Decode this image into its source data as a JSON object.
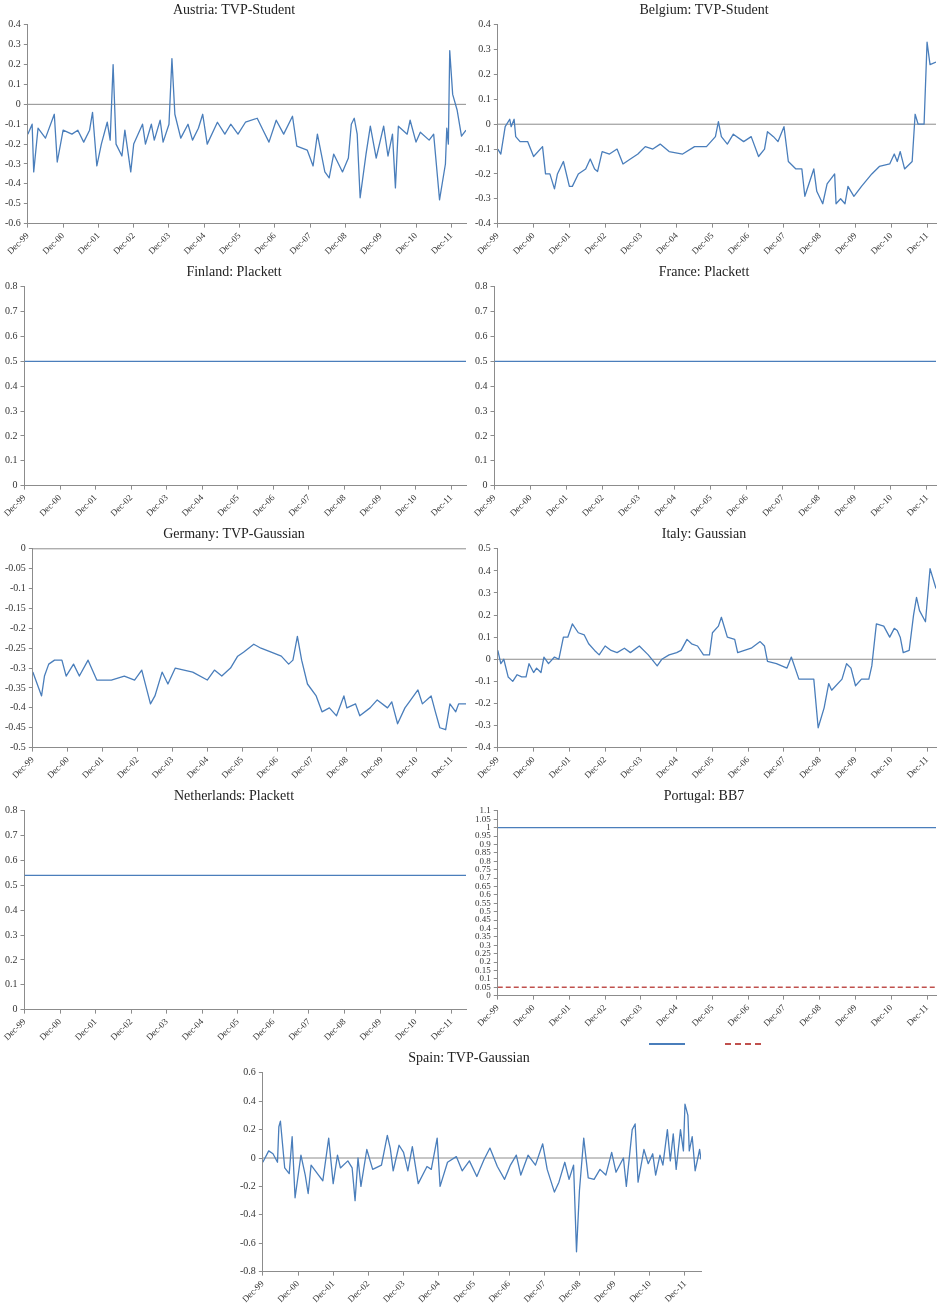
{
  "chart_data": [
    {
      "type": "line",
      "title": "Austria: TVP-Student",
      "xlim": [
        "1999-12",
        "2012-05"
      ],
      "ylim": [
        -0.6,
        0.4
      ],
      "yticks": [
        -0.6,
        -0.5,
        -0.4,
        -0.3,
        -0.2,
        -0.1,
        0,
        0.1,
        0.2,
        0.3,
        0.4
      ],
      "xticks": [
        {
          "value": "1999-12",
          "label": "Dec-99"
        },
        {
          "value": "2000-12",
          "label": "Dec-00"
        },
        {
          "value": "2001-12",
          "label": "Dec-01"
        },
        {
          "value": "2002-12",
          "label": "Dec-02"
        },
        {
          "value": "2003-12",
          "label": "Dec-03"
        },
        {
          "value": "2004-12",
          "label": "Dec-04"
        },
        {
          "value": "2005-12",
          "label": "Dec-05"
        },
        {
          "value": "2006-12",
          "label": "Dec-06"
        },
        {
          "value": "2007-12",
          "label": "Dec-07"
        },
        {
          "value": "2008-12",
          "label": "Dec-08"
        },
        {
          "value": "2009-12",
          "label": "Dec-09"
        },
        {
          "value": "2010-12",
          "label": "Dec-10"
        },
        {
          "value": "2011-12",
          "label": "Dec-11"
        }
      ],
      "ref_lines": [
        {
          "axis": "y",
          "value": 0
        }
      ],
      "series": [
        {
          "color": "#4a7ebb",
          "x": [
            "1999-12",
            "2000-01-15",
            "2000-02",
            "2000-03-15",
            "2000-06",
            "2000-09",
            "2000-10",
            "2000-12",
            "2001-03",
            "2001-05",
            "2001-07",
            "2001-09",
            "2001-10",
            "2001-11-15",
            "2002-01",
            "2002-03",
            "2002-04",
            "2002-05",
            "2002-06",
            "2002-08",
            "2002-09",
            "2002-11",
            "2002-12",
            "2003-03",
            "2003-04",
            "2003-06",
            "2003-07",
            "2003-09",
            "2003-10",
            "2003-12",
            "2004-01",
            "2004-02",
            "2004-04",
            "2004-06-15",
            "2004-08",
            "2004-10",
            "2004-11-15",
            "2005-01",
            "2005-04-15",
            "2005-07",
            "2005-09",
            "2005-11-15",
            "2006-02",
            "2006-06",
            "2006-08",
            "2006-10",
            "2006-12-15",
            "2007-03",
            "2007-06",
            "2007-07-15",
            "2007-11",
            "2008-01",
            "2008-02-15",
            "2008-05",
            "2008-06-15",
            "2008-08",
            "2008-11",
            "2009-01",
            "2009-02",
            "2009-03",
            "2009-04",
            "2009-05",
            "2009-07",
            "2009-08-15",
            "2009-10-15",
            "2010-01",
            "2010-02-15",
            "2010-04",
            "2010-05",
            "2010-06",
            "2010-09",
            "2010-10",
            "2010-12",
            "2011-01-15",
            "2011-04-15",
            "2011-06",
            "2011-08",
            "2011-10",
            "2011-10-15",
            "2011-11",
            "2011-11-15",
            "2011-12-15",
            "2012-02",
            "2012-03-15",
            "2012-05"
          ],
          "values": [
            -0.15,
            -0.1,
            -0.34,
            -0.12,
            -0.17,
            -0.05,
            -0.29,
            -0.13,
            -0.15,
            -0.13,
            -0.19,
            -0.13,
            -0.04,
            -0.31,
            -0.2,
            -0.09,
            -0.18,
            0.2,
            -0.2,
            -0.26,
            -0.13,
            -0.34,
            -0.2,
            -0.1,
            -0.2,
            -0.1,
            -0.18,
            -0.08,
            -0.19,
            -0.1,
            0.23,
            -0.05,
            -0.17,
            -0.1,
            -0.18,
            -0.12,
            -0.05,
            -0.2,
            -0.09,
            -0.15,
            -0.1,
            -0.15,
            -0.09,
            -0.07,
            -0.13,
            -0.19,
            -0.08,
            -0.15,
            -0.06,
            -0.21,
            -0.23,
            -0.31,
            -0.15,
            -0.34,
            -0.37,
            -0.25,
            -0.34,
            -0.27,
            -0.1,
            -0.07,
            -0.15,
            -0.47,
            -0.25,
            -0.11,
            -0.27,
            -0.11,
            -0.26,
            -0.15,
            -0.42,
            -0.11,
            -0.15,
            -0.08,
            -0.19,
            -0.14,
            -0.18,
            -0.15,
            -0.48,
            -0.3,
            -0.12,
            -0.2,
            0.27,
            0.05,
            -0.03,
            -0.16,
            -0.13
          ]
        }
      ]
    },
    {
      "type": "line",
      "title": "Belgium: TVP-Student",
      "xlim": [
        "1999-12",
        "2012-03"
      ],
      "ylim": [
        -0.4,
        0.4
      ],
      "yticks": [
        -0.4,
        -0.3,
        -0.2,
        -0.1,
        0,
        0.1,
        0.2,
        0.3,
        0.4
      ],
      "xticks": [
        {
          "value": "1999-12",
          "label": "Dec-99"
        },
        {
          "value": "2000-12",
          "label": "Dec-00"
        },
        {
          "value": "2001-12",
          "label": "Dec-01"
        },
        {
          "value": "2002-12",
          "label": "Dec-02"
        },
        {
          "value": "2003-12",
          "label": "Dec-03"
        },
        {
          "value": "2004-12",
          "label": "Dec-04"
        },
        {
          "value": "2005-12",
          "label": "Dec-05"
        },
        {
          "value": "2006-12",
          "label": "Dec-06"
        },
        {
          "value": "2007-12",
          "label": "Dec-07"
        },
        {
          "value": "2008-12",
          "label": "Dec-08"
        },
        {
          "value": "2009-12",
          "label": "Dec-09"
        },
        {
          "value": "2010-12",
          "label": "Dec-10"
        },
        {
          "value": "2011-12",
          "label": "Dec-11"
        }
      ],
      "ref_lines": [
        {
          "axis": "y",
          "value": 0
        }
      ],
      "series": [
        {
          "color": "#4a7ebb",
          "x": [
            "1999-12",
            "2000-01",
            "2000-02-15",
            "2000-04",
            "2000-04-15",
            "2000-05-15",
            "2000-06",
            "2000-07-15",
            "2000-10",
            "2000-12",
            "2001-03",
            "2001-04",
            "2001-05-15",
            "2001-07",
            "2001-08",
            "2001-10",
            "2001-12",
            "2002-01",
            "2002-03",
            "2002-05-15",
            "2002-07",
            "2002-08-15",
            "2002-09-15",
            "2002-11",
            "2003-01-15",
            "2003-04",
            "2003-06",
            "2003-08-15",
            "2003-11",
            "2004-01-15",
            "2004-04",
            "2004-06-15",
            "2004-09-15",
            "2005-02",
            "2005-06",
            "2005-10",
            "2006-01",
            "2006-02",
            "2006-03",
            "2006-05",
            "2006-07",
            "2006-10-15",
            "2007-01",
            "2007-03-15",
            "2007-05-15",
            "2007-06-15",
            "2007-08-15",
            "2007-10",
            "2007-12",
            "2008-01-15",
            "2008-04",
            "2008-06",
            "2008-07",
            "2008-10",
            "2008-11",
            "2009-01",
            "2009-02-15",
            "2009-05",
            "2009-05-15",
            "2009-07",
            "2009-08-15",
            "2009-09-15",
            "2009-11-15",
            "2010-02",
            "2010-05-15",
            "2010-08",
            "2010-11-15",
            "2011-01",
            "2011-02",
            "2011-03",
            "2011-04-15",
            "2011-07",
            "2011-08",
            "2011-09",
            "2011-11",
            "2011-12",
            "2012-01",
            "2012-03"
          ],
          "values": [
            -0.1,
            -0.12,
            -0.01,
            0.02,
            -0.01,
            0.02,
            -0.05,
            -0.07,
            -0.07,
            -0.13,
            -0.09,
            -0.2,
            -0.2,
            -0.26,
            -0.2,
            -0.15,
            -0.25,
            -0.25,
            -0.2,
            -0.18,
            -0.14,
            -0.18,
            -0.19,
            -0.11,
            -0.12,
            -0.1,
            -0.16,
            -0.14,
            -0.12,
            -0.09,
            -0.1,
            -0.08,
            -0.11,
            -0.12,
            -0.09,
            -0.09,
            -0.05,
            0.01,
            -0.05,
            -0.08,
            -0.04,
            -0.07,
            -0.05,
            -0.13,
            -0.1,
            -0.03,
            -0.05,
            -0.07,
            -0.01,
            -0.15,
            -0.18,
            -0.18,
            -0.29,
            -0.18,
            -0.27,
            -0.32,
            -0.24,
            -0.2,
            -0.32,
            -0.3,
            -0.32,
            -0.25,
            -0.29,
            -0.25,
            -0.2,
            -0.17,
            -0.16,
            -0.12,
            -0.15,
            -0.11,
            -0.18,
            -0.15,
            0.04,
            0,
            0,
            0.33,
            0.24,
            0.25
          ]
        }
      ]
    },
    {
      "type": "line",
      "title": "Finland: Plackett",
      "xlim": [
        "1999-12",
        "2012-05"
      ],
      "ylim": [
        0,
        0.8
      ],
      "yticks": [
        0,
        0.1,
        0.2,
        0.3,
        0.4,
        0.5,
        0.6,
        0.7,
        0.8
      ],
      "xticks": [
        {
          "value": "1999-12",
          "label": "Dec-99"
        },
        {
          "value": "2000-12",
          "label": "Dec-00"
        },
        {
          "value": "2001-12",
          "label": "Dec-01"
        },
        {
          "value": "2002-12",
          "label": "Dec-02"
        },
        {
          "value": "2003-12",
          "label": "Dec-03"
        },
        {
          "value": "2004-12",
          "label": "Dec-04"
        },
        {
          "value": "2005-12",
          "label": "Dec-05"
        },
        {
          "value": "2006-12",
          "label": "Dec-06"
        },
        {
          "value": "2007-12",
          "label": "Dec-07"
        },
        {
          "value": "2008-12",
          "label": "Dec-08"
        },
        {
          "value": "2009-12",
          "label": "Dec-09"
        },
        {
          "value": "2010-12",
          "label": "Dec-10"
        },
        {
          "value": "2011-12",
          "label": "Dec-11"
        }
      ],
      "series": [
        {
          "color": "#4a7ebb",
          "x": [
            "1999-12",
            "2012-05"
          ],
          "values": [
            0.5,
            0.5
          ]
        }
      ]
    },
    {
      "type": "line",
      "title": "France: Plackett",
      "xlim": [
        "1999-12",
        "2012-03"
      ],
      "ylim": [
        0,
        0.8
      ],
      "yticks": [
        0,
        0.1,
        0.2,
        0.3,
        0.4,
        0.5,
        0.6,
        0.7,
        0.8
      ],
      "xticks": [
        {
          "value": "1999-12",
          "label": "Dec-99"
        },
        {
          "value": "2000-12",
          "label": "Dec-00"
        },
        {
          "value": "2001-12",
          "label": "Dec-01"
        },
        {
          "value": "2002-12",
          "label": "Dec-02"
        },
        {
          "value": "2003-12",
          "label": "Dec-03"
        },
        {
          "value": "2004-12",
          "label": "Dec-04"
        },
        {
          "value": "2005-12",
          "label": "Dec-05"
        },
        {
          "value": "2006-12",
          "label": "Dec-06"
        },
        {
          "value": "2007-12",
          "label": "Dec-07"
        },
        {
          "value": "2008-12",
          "label": "Dec-08"
        },
        {
          "value": "2009-12",
          "label": "Dec-09"
        },
        {
          "value": "2010-12",
          "label": "Dec-10"
        },
        {
          "value": "2011-12",
          "label": "Dec-11"
        }
      ],
      "series": [
        {
          "color": "#4a7ebb",
          "x": [
            "1999-12",
            "2012-03"
          ],
          "values": [
            0.5,
            0.5
          ]
        }
      ]
    },
    {
      "type": "line",
      "title": "Germany: TVP-Gaussian",
      "xlim": [
        "1999-12",
        "2012-05"
      ],
      "ylim": [
        -0.5,
        0
      ],
      "yticks": [
        -0.5,
        -0.45,
        -0.4,
        -0.35,
        -0.3,
        -0.25,
        -0.2,
        -0.15,
        -0.1,
        -0.05,
        0
      ],
      "xticks": [
        {
          "value": "1999-12",
          "label": "Dec-99"
        },
        {
          "value": "2000-12",
          "label": "Dec-00"
        },
        {
          "value": "2001-12",
          "label": "Dec-01"
        },
        {
          "value": "2002-12",
          "label": "Dec-02"
        },
        {
          "value": "2003-12",
          "label": "Dec-03"
        },
        {
          "value": "2004-12",
          "label": "Dec-04"
        },
        {
          "value": "2005-12",
          "label": "Dec-05"
        },
        {
          "value": "2006-12",
          "label": "Dec-06"
        },
        {
          "value": "2007-12",
          "label": "Dec-07"
        },
        {
          "value": "2008-12",
          "label": "Dec-08"
        },
        {
          "value": "2009-12",
          "label": "Dec-09"
        },
        {
          "value": "2010-12",
          "label": "Dec-10"
        },
        {
          "value": "2011-12",
          "label": "Dec-11"
        }
      ],
      "ref_lines": [
        {
          "axis": "y",
          "value": 0
        }
      ],
      "series": [
        {
          "color": "#4a7ebb",
          "x": [
            "1999-12",
            "2000-02",
            "2000-03",
            "2000-04",
            "2000-05-15",
            "2000-07-15",
            "2000-10",
            "2000-11-15",
            "2001-02",
            "2001-04",
            "2001-07",
            "2001-10",
            "2002-03",
            "2002-07-15",
            "2002-11",
            "2003-01-15",
            "2003-04-15",
            "2003-06",
            "2003-08-15",
            "2003-10-15",
            "2004-01",
            "2004-07",
            "2004-12",
            "2005-02-15",
            "2005-05",
            "2005-08",
            "2005-10-15",
            "2005-12-15",
            "2006-04",
            "2006-06-15",
            "2006-10",
            "2007-01-15",
            "2007-04",
            "2007-05-15",
            "2007-07",
            "2007-08-15",
            "2007-10-15",
            "2008-01-15",
            "2008-03-15",
            "2008-06",
            "2008-08-15",
            "2008-11",
            "2008-12",
            "2009-03",
            "2009-04-15",
            "2009-08",
            "2009-10-15",
            "2010-02",
            "2010-03-15",
            "2010-05-15",
            "2010-08",
            "2010-10",
            "2010-12-15",
            "2011-02",
            "2011-05",
            "2011-06-15",
            "2011-08",
            "2011-10",
            "2011-11-15",
            "2012-01-15",
            "2012-02-15",
            "2012-05"
          ],
          "values": [
            -0.31,
            -0.35,
            -0.37,
            -0.32,
            -0.29,
            -0.28,
            -0.28,
            -0.32,
            -0.29,
            -0.32,
            -0.28,
            -0.33,
            -0.33,
            -0.32,
            -0.33,
            -0.305,
            -0.39,
            -0.37,
            -0.31,
            -0.34,
            -0.3,
            -0.31,
            -0.33,
            -0.305,
            -0.32,
            -0.3,
            -0.27,
            -0.26,
            -0.24,
            -0.25,
            -0.26,
            -0.27,
            -0.29,
            -0.28,
            -0.22,
            -0.28,
            -0.34,
            -0.37,
            -0.41,
            -0.4,
            -0.42,
            -0.37,
            -0.4,
            -0.39,
            -0.42,
            -0.4,
            -0.38,
            -0.4,
            -0.385,
            -0.44,
            -0.4,
            -0.38,
            -0.355,
            -0.39,
            -0.37,
            -0.41,
            -0.45,
            -0.455,
            -0.39,
            -0.41,
            -0.39,
            -0.39
          ]
        }
      ]
    },
    {
      "type": "line",
      "title": "Italy: Gaussian",
      "xlim": [
        "1999-12",
        "2012-03"
      ],
      "ylim": [
        -0.4,
        0.5
      ],
      "yticks": [
        -0.4,
        -0.3,
        -0.2,
        -0.1,
        0,
        0.1,
        0.2,
        0.3,
        0.4,
        0.5
      ],
      "xticks": [
        {
          "value": "1999-12",
          "label": "Dec-99"
        },
        {
          "value": "2000-12",
          "label": "Dec-00"
        },
        {
          "value": "2001-12",
          "label": "Dec-01"
        },
        {
          "value": "2002-12",
          "label": "Dec-02"
        },
        {
          "value": "2003-12",
          "label": "Dec-03"
        },
        {
          "value": "2004-12",
          "label": "Dec-04"
        },
        {
          "value": "2005-12",
          "label": "Dec-05"
        },
        {
          "value": "2006-12",
          "label": "Dec-06"
        },
        {
          "value": "2007-12",
          "label": "Dec-07"
        },
        {
          "value": "2008-12",
          "label": "Dec-08"
        },
        {
          "value": "2009-12",
          "label": "Dec-09"
        },
        {
          "value": "2010-12",
          "label": "Dec-10"
        },
        {
          "value": "2011-12",
          "label": "Dec-11"
        }
      ],
      "ref_lines": [
        {
          "axis": "y",
          "value": 0
        }
      ],
      "series": [
        {
          "color": "#4a7ebb",
          "x": [
            "1999-12",
            "2000-01",
            "2000-02",
            "2000-03-15",
            "2000-05",
            "2000-06-15",
            "2000-08",
            "2000-09-15",
            "2000-10-15",
            "2000-12",
            "2001-01",
            "2001-02-15",
            "2001-03-15",
            "2001-05",
            "2001-07",
            "2001-08-15",
            "2001-10",
            "2001-11-15",
            "2002-01",
            "2002-03",
            "2002-05",
            "2002-06-15",
            "2002-08-15",
            "2002-10",
            "2002-12",
            "2003-02",
            "2003-04",
            "2003-06-15",
            "2003-08-15",
            "2003-11-15",
            "2004-02-15",
            "2004-05-15",
            "2004-07",
            "2004-09-15",
            "2004-12",
            "2005-01-15",
            "2005-03-15",
            "2005-05",
            "2005-07",
            "2005-09",
            "2005-11",
            "2005-12",
            "2006-02",
            "2006-03",
            "2006-05",
            "2006-07-15",
            "2006-08-15",
            "2007-01",
            "2007-04",
            "2007-05-15",
            "2007-06-15",
            "2007-09-15",
            "2008-01",
            "2008-02-15",
            "2008-05",
            "2008-09",
            "2008-10",
            "2008-11-15",
            "2009-01-15",
            "2009-03",
            "2009-04",
            "2009-07-15",
            "2009-09",
            "2009-10-15",
            "2009-12",
            "2010-02",
            "2010-04-15",
            "2010-05-15",
            "2010-07",
            "2010-09-15",
            "2010-11-15",
            "2011-01",
            "2011-02",
            "2011-03",
            "2011-04",
            "2011-06",
            "2011-07-15",
            "2011-08-15",
            "2011-09-15",
            "2011-11-15",
            "2012-01",
            "2012-03"
          ],
          "values": [
            0.04,
            -0.02,
            0,
            -0.08,
            -0.1,
            -0.07,
            -0.08,
            -0.08,
            -0.02,
            -0.06,
            -0.04,
            -0.06,
            0.01,
            -0.02,
            0.01,
            0,
            0.1,
            0.1,
            0.16,
            0.12,
            0.11,
            0.07,
            0.04,
            0.02,
            0.06,
            0.04,
            0.03,
            0.05,
            0.03,
            0.06,
            0.02,
            -0.03,
            0,
            0.02,
            0.03,
            0.04,
            0.09,
            0.07,
            0.06,
            0.02,
            0.02,
            0.12,
            0.15,
            0.19,
            0.1,
            0.09,
            0.03,
            0.05,
            0.08,
            0.06,
            -0.01,
            -0.02,
            -0.04,
            0.01,
            -0.09,
            -0.09,
            -0.09,
            -0.31,
            -0.22,
            -0.11,
            -0.14,
            -0.09,
            -0.02,
            -0.04,
            -0.12,
            -0.09,
            -0.09,
            -0.03,
            0.16,
            0.15,
            0.1,
            0.14,
            0.13,
            0.1,
            0.03,
            0.04,
            0.2,
            0.28,
            0.22,
            0.17,
            0.41,
            0.32
          ]
        }
      ]
    },
    {
      "type": "line",
      "title": "Netherlands: Plackett",
      "xlim": [
        "1999-12",
        "2012-05"
      ],
      "ylim": [
        0,
        0.8
      ],
      "yticks": [
        0,
        0.1,
        0.2,
        0.3,
        0.4,
        0.5,
        0.6,
        0.7,
        0.8
      ],
      "xticks": [
        {
          "value": "1999-12",
          "label": "Dec-99"
        },
        {
          "value": "2000-12",
          "label": "Dec-00"
        },
        {
          "value": "2001-12",
          "label": "Dec-01"
        },
        {
          "value": "2002-12",
          "label": "Dec-02"
        },
        {
          "value": "2003-12",
          "label": "Dec-03"
        },
        {
          "value": "2004-12",
          "label": "Dec-04"
        },
        {
          "value": "2005-12",
          "label": "Dec-05"
        },
        {
          "value": "2006-12",
          "label": "Dec-06"
        },
        {
          "value": "2007-12",
          "label": "Dec-07"
        },
        {
          "value": "2008-12",
          "label": "Dec-08"
        },
        {
          "value": "2009-12",
          "label": "Dec-09"
        },
        {
          "value": "2010-12",
          "label": "Dec-10"
        },
        {
          "value": "2011-12",
          "label": "Dec-11"
        }
      ],
      "series": [
        {
          "color": "#4a7ebb",
          "x": [
            "1999-12",
            "2012-05"
          ],
          "values": [
            0.54,
            0.54
          ]
        }
      ]
    },
    {
      "type": "line",
      "title": "Portugal: BB7",
      "xlim": [
        "1999-12",
        "2012-03"
      ],
      "ylim": [
        0,
        1.1
      ],
      "yticks": [
        0,
        0.05,
        0.1,
        0.15,
        0.2,
        0.25,
        0.3,
        0.35,
        0.4,
        0.45,
        0.5,
        0.55,
        0.6,
        0.65,
        0.7,
        0.75,
        0.8,
        0.85,
        0.9,
        0.95,
        1,
        1.05,
        1.1
      ],
      "xticks": [
        {
          "value": "1999-12",
          "label": "Dec-99"
        },
        {
          "value": "2000-12",
          "label": "Dec-00"
        },
        {
          "value": "2001-12",
          "label": "Dec-01"
        },
        {
          "value": "2002-12",
          "label": "Dec-02"
        },
        {
          "value": "2003-12",
          "label": "Dec-03"
        },
        {
          "value": "2004-12",
          "label": "Dec-04"
        },
        {
          "value": "2005-12",
          "label": "Dec-05"
        },
        {
          "value": "2006-12",
          "label": "Dec-06"
        },
        {
          "value": "2007-12",
          "label": "Dec-07"
        },
        {
          "value": "2008-12",
          "label": "Dec-08"
        },
        {
          "value": "2009-12",
          "label": "Dec-09"
        },
        {
          "value": "2010-12",
          "label": "Dec-10"
        },
        {
          "value": "2011-12",
          "label": "Dec-11"
        }
      ],
      "series": [
        {
          "color": "#4a7ebb",
          "x": [
            "1999-12",
            "2012-03"
          ],
          "values": [
            1,
            1
          ]
        },
        {
          "color": "#c0504d",
          "line_style": "dashed",
          "x": [
            "1999-12",
            "2012-03"
          ],
          "values": [
            0.05,
            0.05
          ]
        }
      ]
    },
    {
      "type": "line",
      "title": "Spain: TVP-Gaussian",
      "xlim": [
        "1999-12",
        "2012-05-15"
      ],
      "ylim": [
        -0.8,
        0.6
      ],
      "yticks": [
        -0.8,
        -0.6,
        -0.4,
        -0.2,
        0,
        0.2,
        0.4,
        0.6
      ],
      "xticks": [
        {
          "value": "1999-12",
          "label": "Dec-99"
        },
        {
          "value": "2000-12",
          "label": "Dec-00"
        },
        {
          "value": "2001-12",
          "label": "Dec-01"
        },
        {
          "value": "2002-12",
          "label": "Dec-02"
        },
        {
          "value": "2003-12",
          "label": "Dec-03"
        },
        {
          "value": "2004-12",
          "label": "Dec-04"
        },
        {
          "value": "2005-12",
          "label": "Dec-05"
        },
        {
          "value": "2006-12",
          "label": "Dec-06"
        },
        {
          "value": "2007-12",
          "label": "Dec-07"
        },
        {
          "value": "2008-12",
          "label": "Dec-08"
        },
        {
          "value": "2009-12",
          "label": "Dec-09"
        },
        {
          "value": "2010-12",
          "label": "Dec-10"
        },
        {
          "value": "2011-12",
          "label": "Dec-11"
        }
      ],
      "ref_lines": [
        {
          "axis": "y",
          "value": 0
        }
      ],
      "series": [
        {
          "color": "#4a7ebb",
          "x": [
            "1999-12",
            "2000-02",
            "2000-03-15",
            "2000-05",
            "2000-05-15",
            "2000-06",
            "2000-07-15",
            "2000-09",
            "2000-10",
            "2000-11",
            "2000-12-15",
            "2001-01",
            "2001-02-15",
            "2001-03-15",
            "2001-04-15",
            "2001-07",
            "2001-08-15",
            "2001-10-15",
            "2001-12",
            "2002-01-15",
            "2002-02-15",
            "2002-05",
            "2002-06-15",
            "2002-07-15",
            "2002-08-15",
            "2002-09-15",
            "2002-11-15",
            "2003-01-15",
            "2003-04-15",
            "2003-06-15",
            "2003-07-15",
            "2003-08-15",
            "2003-10-15",
            "2003-12",
            "2004-01-15",
            "2004-03",
            "2004-05",
            "2004-08",
            "2004-09-15",
            "2004-11-15",
            "2004-12-15",
            "2005-03",
            "2005-06",
            "2005-08",
            "2005-10-15",
            "2006-01",
            "2006-03-15",
            "2006-05-15",
            "2006-08",
            "2006-10-15",
            "2006-12-15",
            "2007-02-15",
            "2007-04",
            "2007-06-15",
            "2007-09",
            "2007-11-15",
            "2008-01",
            "2008-03-15",
            "2008-05",
            "2008-07",
            "2008-08-15",
            "2008-10",
            "2008-11",
            "2008-12",
            "2009-01-15",
            "2009-03",
            "2009-05",
            "2009-07",
            "2009-09",
            "2009-11",
            "2009-12-15",
            "2010-03",
            "2010-04",
            "2010-06",
            "2010-07",
            "2010-08",
            "2010-10",
            "2010-11-15",
            "2011-01",
            "2011-02",
            "2011-03-15",
            "2011-04-15",
            "2011-06",
            "2011-07",
            "2011-08",
            "2011-09",
            "2011-10-15",
            "2011-11-15",
            "2011-12",
            "2012-01",
            "2012-01-15",
            "2012-02-15",
            "2012-03-15",
            "2012-05",
            "2012-05-15"
          ],
          "values": [
            -0.03,
            0.05,
            0.03,
            -0.03,
            0.22,
            0.26,
            -0.07,
            -0.11,
            0.15,
            -0.28,
            -0.06,
            0.02,
            -0.12,
            -0.25,
            -0.05,
            -0.12,
            -0.16,
            0.14,
            -0.18,
            0.02,
            -0.07,
            -0.02,
            -0.07,
            -0.3,
            0,
            -0.2,
            0.06,
            -0.08,
            -0.05,
            0.16,
            0.07,
            -0.09,
            0.09,
            0.04,
            -0.09,
            0.08,
            -0.18,
            -0.06,
            -0.08,
            0.14,
            -0.2,
            -0.03,
            0.01,
            -0.09,
            -0.02,
            -0.13,
            -0.01,
            0.07,
            -0.06,
            -0.15,
            -0.05,
            0.02,
            -0.12,
            0.02,
            -0.05,
            0.1,
            -0.08,
            -0.24,
            -0.17,
            -0.03,
            -0.15,
            -0.05,
            -0.66,
            -0.23,
            0.14,
            -0.14,
            -0.15,
            -0.08,
            -0.12,
            0.04,
            -0.1,
            0,
            -0.2,
            0.2,
            0.24,
            -0.17,
            0.06,
            -0.04,
            0.03,
            -0.12,
            0.02,
            -0.05,
            0.2,
            -0.02,
            0.17,
            -0.08,
            0.2,
            0.05,
            0.38,
            0.3,
            0.05,
            0.15,
            -0.09,
            0.06,
            -0.01
          ]
        }
      ]
    }
  ]
}
